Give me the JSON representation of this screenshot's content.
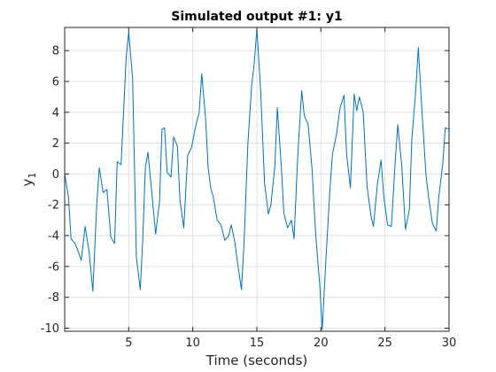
{
  "chart_data": {
    "type": "line",
    "title": "Simulated output #1: y1",
    "xlabel": "Time (seconds)",
    "ylabel_main": "y",
    "ylabel_sub": "1",
    "xlim": [
      0,
      30
    ],
    "ylim": [
      -10.2,
      9.5
    ],
    "xticks": [
      5,
      10,
      15,
      20,
      25,
      30
    ],
    "yticks": [
      -10,
      -8,
      -6,
      -4,
      -2,
      0,
      2,
      4,
      6,
      8
    ],
    "grid": true,
    "line_color": "#0072BD",
    "series": [
      {
        "values": [
          [
            0.0,
            0.0
          ],
          [
            0.3,
            -1.5
          ],
          [
            0.5,
            -4.2
          ],
          [
            0.8,
            -4.5
          ],
          [
            1.0,
            -4.9
          ],
          [
            1.3,
            -5.6
          ],
          [
            1.6,
            -3.4
          ],
          [
            1.9,
            -5.0
          ],
          [
            2.2,
            -7.6
          ],
          [
            2.5,
            -2.0
          ],
          [
            2.7,
            0.4
          ],
          [
            3.0,
            -1.2
          ],
          [
            3.3,
            -1.0
          ],
          [
            3.6,
            -4.1
          ],
          [
            3.9,
            -4.5
          ],
          [
            4.1,
            0.8
          ],
          [
            4.4,
            0.6
          ],
          [
            4.8,
            7.5
          ],
          [
            5.0,
            9.2
          ],
          [
            5.3,
            6.2
          ],
          [
            5.6,
            -5.4
          ],
          [
            5.9,
            -7.5
          ],
          [
            6.1,
            -4.2
          ],
          [
            6.3,
            0.4
          ],
          [
            6.5,
            1.4
          ],
          [
            6.8,
            -1.2
          ],
          [
            7.1,
            -3.9
          ],
          [
            7.4,
            -1.8
          ],
          [
            7.6,
            2.9
          ],
          [
            7.8,
            3.0
          ],
          [
            8.0,
            0.1
          ],
          [
            8.3,
            -0.2
          ],
          [
            8.5,
            2.4
          ],
          [
            8.8,
            1.8
          ],
          [
            9.0,
            -1.7
          ],
          [
            9.3,
            -3.5
          ],
          [
            9.6,
            1.2
          ],
          [
            9.9,
            1.7
          ],
          [
            10.2,
            3.0
          ],
          [
            10.5,
            4.0
          ],
          [
            10.7,
            6.5
          ],
          [
            11.0,
            3.6
          ],
          [
            11.2,
            0.4
          ],
          [
            11.4,
            -0.9
          ],
          [
            11.6,
            -1.5
          ],
          [
            11.9,
            -3.0
          ],
          [
            12.2,
            -3.3
          ],
          [
            12.5,
            -4.3
          ],
          [
            12.8,
            -4.0
          ],
          [
            13.0,
            -3.3
          ],
          [
            13.3,
            -4.5
          ],
          [
            13.5,
            -5.8
          ],
          [
            13.8,
            -7.5
          ],
          [
            14.0,
            -4.5
          ],
          [
            14.3,
            2.0
          ],
          [
            14.6,
            5.8
          ],
          [
            14.8,
            7.2
          ],
          [
            15.0,
            9.4
          ],
          [
            15.3,
            5.4
          ],
          [
            15.6,
            -0.6
          ],
          [
            15.9,
            -2.6
          ],
          [
            16.1,
            -2.0
          ],
          [
            16.4,
            0.5
          ],
          [
            16.6,
            4.3
          ],
          [
            16.9,
            0.6
          ],
          [
            17.1,
            -2.5
          ],
          [
            17.4,
            -3.5
          ],
          [
            17.7,
            -3.0
          ],
          [
            17.9,
            -4.2
          ],
          [
            18.2,
            1.3
          ],
          [
            18.5,
            5.4
          ],
          [
            18.7,
            3.8
          ],
          [
            19.0,
            3.2
          ],
          [
            19.3,
            0.4
          ],
          [
            19.6,
            -4.0
          ],
          [
            19.9,
            -7.1
          ],
          [
            20.1,
            -10.1
          ],
          [
            20.4,
            -5.4
          ],
          [
            20.7,
            -1.0
          ],
          [
            20.9,
            1.3
          ],
          [
            21.2,
            2.5
          ],
          [
            21.5,
            4.3
          ],
          [
            21.8,
            5.1
          ],
          [
            22.0,
            1.3
          ],
          [
            22.3,
            -0.9
          ],
          [
            22.6,
            5.2
          ],
          [
            22.8,
            4.1
          ],
          [
            23.0,
            5.0
          ],
          [
            23.3,
            4.0
          ],
          [
            23.6,
            -0.8
          ],
          [
            23.9,
            -2.7
          ],
          [
            24.1,
            -3.4
          ],
          [
            24.4,
            -0.7
          ],
          [
            24.7,
            0.9
          ],
          [
            24.9,
            -1.4
          ],
          [
            25.2,
            -3.3
          ],
          [
            25.5,
            -3.4
          ],
          [
            25.8,
            0.8
          ],
          [
            26.0,
            3.2
          ],
          [
            26.3,
            0.6
          ],
          [
            26.6,
            -3.6
          ],
          [
            26.9,
            -2.3
          ],
          [
            27.1,
            2.3
          ],
          [
            27.4,
            5.4
          ],
          [
            27.6,
            8.2
          ],
          [
            27.9,
            3.9
          ],
          [
            28.2,
            -0.1
          ],
          [
            28.4,
            -1.5
          ],
          [
            28.7,
            -3.2
          ],
          [
            29.0,
            -3.7
          ],
          [
            29.2,
            -1.5
          ],
          [
            29.5,
            0.6
          ],
          [
            29.7,
            3.0
          ],
          [
            30.0,
            2.9
          ]
        ]
      }
    ]
  }
}
